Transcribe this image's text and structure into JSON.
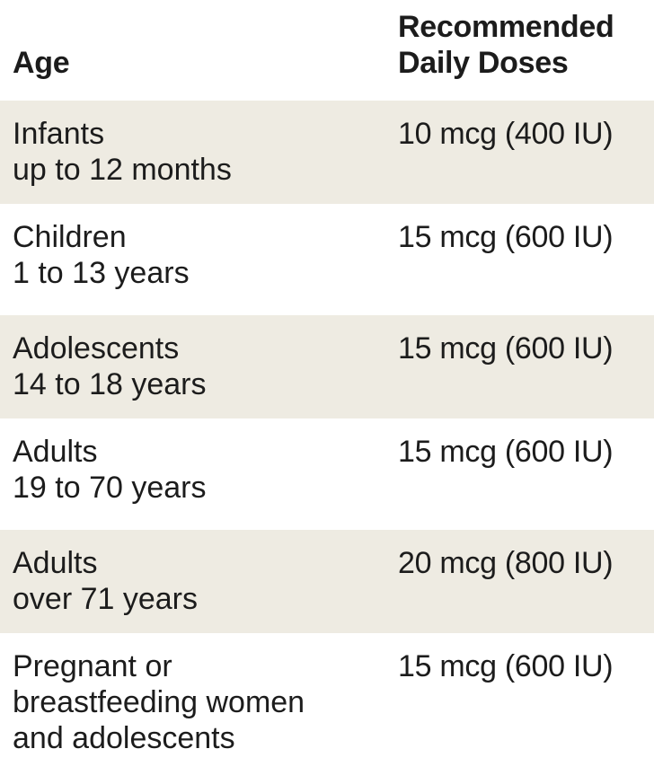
{
  "header": {
    "age": "Age",
    "dose_line1": "Recommended",
    "dose_line2": "Daily Doses"
  },
  "rows": [
    {
      "age_lines": [
        "Infants",
        "up to 12 months"
      ],
      "dose": "10 mcg (400 IU)"
    },
    {
      "age_lines": [
        "Children",
        "1 to 13 years"
      ],
      "dose": "15 mcg (600 IU)"
    },
    {
      "age_lines": [
        "Adolescents",
        "14 to 18 years"
      ],
      "dose": "15 mcg (600 IU)"
    },
    {
      "age_lines": [
        "Adults",
        "19 to 70 years"
      ],
      "dose": "15 mcg (600 IU)"
    },
    {
      "age_lines": [
        "Adults",
        "over 71 years"
      ],
      "dose": "20 mcg (800 IU)"
    },
    {
      "age_lines": [
        "Pregnant or",
        "breastfeeding women",
        "and adolescents"
      ],
      "dose": "15 mcg (600 IU)"
    }
  ],
  "colors": {
    "shaded_row": "#eeebe2",
    "plain_row": "#ffffff",
    "text": "#1c1c1c"
  }
}
